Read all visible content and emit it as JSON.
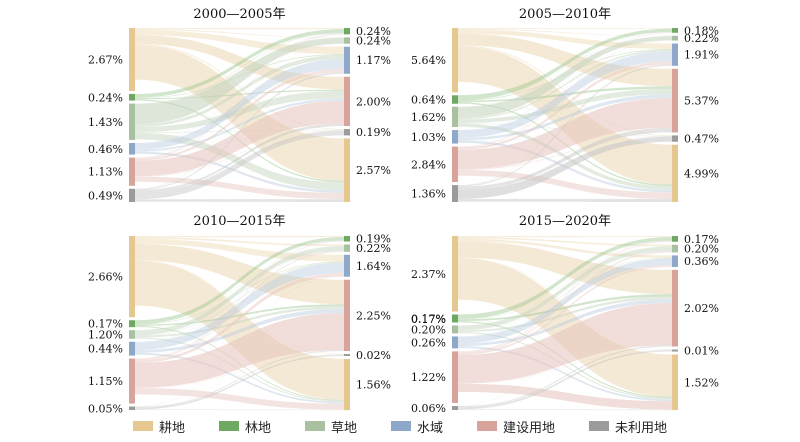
{
  "legend": [
    {
      "label": "耕地",
      "color": "#E5C88F"
    },
    {
      "label": "林地",
      "color": "#6FA862"
    },
    {
      "label": "草地",
      "color": "#A9C1A1"
    },
    {
      "label": "水域",
      "color": "#8EA8C9"
    },
    {
      "label": "建设用地",
      "color": "#D7A39A"
    },
    {
      "label": "未利用地",
      "color": "#9B9B9B"
    }
  ],
  "panels": [
    {
      "title": "2000—2005年",
      "left": [
        {
          "cls": 0,
          "label": "2.67%",
          "share": 0.38
        },
        {
          "cls": 1,
          "label": "0.24%",
          "share": 0.04
        },
        {
          "cls": 2,
          "label": "1.43%",
          "share": 0.22
        },
        {
          "cls": 3,
          "label": "0.46%",
          "share": 0.07
        },
        {
          "cls": 4,
          "label": "1.13%",
          "share": 0.17
        },
        {
          "cls": 5,
          "label": "0.49%",
          "share": 0.08
        }
      ],
      "right": [
        {
          "cls": 1,
          "label": "0.24%",
          "share": 0.04
        },
        {
          "cls": 2,
          "label": "0.24%",
          "share": 0.04
        },
        {
          "cls": 3,
          "label": "1.17%",
          "share": 0.17
        },
        {
          "cls": 4,
          "label": "2.00%",
          "share": 0.31
        },
        {
          "cls": 5,
          "label": "0.19%",
          "share": 0.04
        },
        {
          "cls": 0,
          "label": "2.57%",
          "share": 0.4
        }
      ]
    },
    {
      "title": "2005—2010年",
      "left": [
        {
          "cls": 0,
          "label": "5.64%",
          "share": 0.38
        },
        {
          "cls": 1,
          "label": "0.64%",
          "share": 0.05
        },
        {
          "cls": 2,
          "label": "1.62%",
          "share": 0.12
        },
        {
          "cls": 3,
          "label": "1.03%",
          "share": 0.08
        },
        {
          "cls": 4,
          "label": "2.84%",
          "share": 0.21
        },
        {
          "cls": 5,
          "label": "1.36%",
          "share": 0.1
        }
      ],
      "right": [
        {
          "cls": 1,
          "label": "0.18%",
          "share": 0.03
        },
        {
          "cls": 2,
          "label": "0.22%",
          "share": 0.03
        },
        {
          "cls": 3,
          "label": "1.91%",
          "share": 0.14
        },
        {
          "cls": 4,
          "label": "5.37%",
          "share": 0.4
        },
        {
          "cls": 5,
          "label": "0.47%",
          "share": 0.04
        },
        {
          "cls": 0,
          "label": "4.99%",
          "share": 0.36
        }
      ]
    },
    {
      "title": "2010—2015年",
      "left": [
        {
          "cls": 0,
          "label": "2.66%",
          "share": 0.47
        },
        {
          "cls": 1,
          "label": "0.17%",
          "share": 0.04
        },
        {
          "cls": 2,
          "label": "1.20%",
          "share": 0.05
        },
        {
          "cls": 3,
          "label": "0.44%",
          "share": 0.08
        },
        {
          "cls": 4,
          "label": "1.15%",
          "share": 0.26
        },
        {
          "cls": 5,
          "label": "0.05%",
          "share": 0.02
        }
      ],
      "right": [
        {
          "cls": 1,
          "label": "0.19%",
          "share": 0.03
        },
        {
          "cls": 2,
          "label": "0.22%",
          "share": 0.04
        },
        {
          "cls": 3,
          "label": "1.64%",
          "share": 0.12
        },
        {
          "cls": 4,
          "label": "2.25%",
          "share": 0.39
        },
        {
          "cls": 5,
          "label": "0.02%",
          "share": 0.01
        },
        {
          "cls": 0,
          "label": "1.56%",
          "share": 0.28
        }
      ]
    },
    {
      "title": "2015—2020年",
      "left": [
        {
          "cls": 0,
          "label": "2.37%",
          "share": 0.38
        },
        {
          "cls": 1,
          "label": "0.17%",
          "share": 0.04
        },
        {
          "cls": 2,
          "label": "0.20%",
          "share": 0.04
        },
        {
          "cls": 3,
          "label": "0.26%",
          "share": 0.06
        },
        {
          "cls": 4,
          "label": "1.22%",
          "share": 0.26
        },
        {
          "cls": 5,
          "label": "0.06%",
          "share": 0.02
        }
      ],
      "left_extra": [
        {
          "label": "0.17%"
        }
      ],
      "right": [
        {
          "cls": 1,
          "label": "0.17%",
          "share": 0.03
        },
        {
          "cls": 2,
          "label": "0.20%",
          "share": 0.04
        },
        {
          "cls": 3,
          "label": "0.36%",
          "share": 0.06
        },
        {
          "cls": 4,
          "label": "2.02%",
          "share": 0.4
        },
        {
          "cls": 5,
          "label": "0.01%",
          "share": 0.01
        },
        {
          "cls": 0,
          "label": "1.52%",
          "share": 0.29
        }
      ]
    }
  ]
}
